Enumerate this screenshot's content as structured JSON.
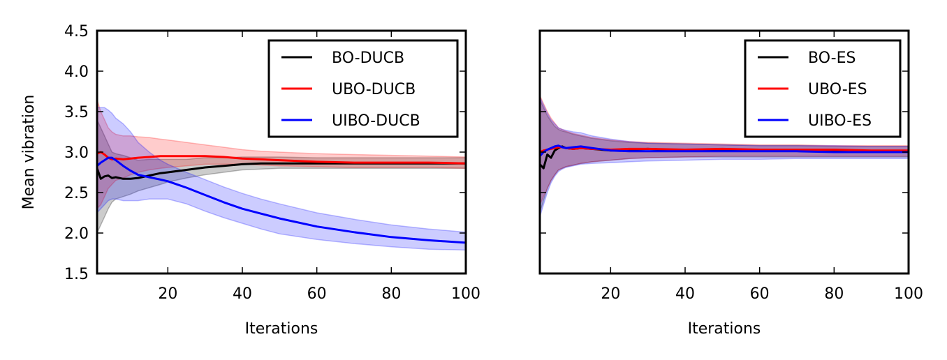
{
  "chart_data": [
    {
      "type": "line",
      "xlabel": "Iterations",
      "ylabel": "Mean vibration",
      "xlim": [
        1,
        100
      ],
      "ylim": [
        1.5,
        4.5
      ],
      "xticks": [
        20,
        40,
        60,
        80,
        100
      ],
      "yticks": [
        1.5,
        2.0,
        2.5,
        3.0,
        3.5,
        4.0,
        4.5
      ],
      "ytick_labels": [
        "1.5",
        "2.0",
        "2.5",
        "3.0",
        "3.5",
        "4.0",
        "4.5"
      ],
      "show_yticklabels": true,
      "legend_position": "top-right",
      "series": [
        {
          "name": "BO-DUCB",
          "color": "#000000",
          "x": [
            1,
            2,
            3,
            4,
            5,
            6,
            8,
            10,
            12,
            15,
            18,
            20,
            25,
            30,
            35,
            40,
            45,
            50,
            60,
            70,
            80,
            90,
            100
          ],
          "y": [
            2.8,
            2.67,
            2.7,
            2.71,
            2.68,
            2.69,
            2.67,
            2.67,
            2.68,
            2.71,
            2.74,
            2.75,
            2.78,
            2.81,
            2.83,
            2.85,
            2.86,
            2.86,
            2.86,
            2.86,
            2.86,
            2.86,
            2.86
          ],
          "lower": [
            2.0,
            2.1,
            2.2,
            2.3,
            2.38,
            2.42,
            2.45,
            2.48,
            2.52,
            2.56,
            2.6,
            2.63,
            2.68,
            2.72,
            2.75,
            2.78,
            2.79,
            2.8,
            2.8,
            2.8,
            2.8,
            2.8,
            2.8
          ],
          "upper": [
            3.4,
            3.3,
            3.2,
            3.1,
            3.0,
            2.98,
            2.96,
            2.93,
            2.9,
            2.91,
            2.91,
            2.91,
            2.91,
            2.93,
            2.93,
            2.94,
            2.94,
            2.94,
            2.93,
            2.93,
            2.93,
            2.93,
            2.93
          ]
        },
        {
          "name": "UBO-DUCB",
          "color": "#ff0000",
          "x": [
            1,
            2,
            3,
            4,
            5,
            6,
            8,
            10,
            12,
            15,
            18,
            20,
            25,
            30,
            35,
            40,
            45,
            50,
            60,
            70,
            80,
            90,
            100
          ],
          "y": [
            2.98,
            3.0,
            2.97,
            2.93,
            2.91,
            2.92,
            2.91,
            2.92,
            2.93,
            2.94,
            2.95,
            2.95,
            2.95,
            2.95,
            2.94,
            2.92,
            2.91,
            2.9,
            2.88,
            2.87,
            2.87,
            2.87,
            2.86
          ],
          "lower": [
            2.3,
            2.35,
            2.45,
            2.55,
            2.6,
            2.65,
            2.68,
            2.72,
            2.75,
            2.78,
            2.8,
            2.81,
            2.83,
            2.85,
            2.85,
            2.85,
            2.84,
            2.83,
            2.82,
            2.81,
            2.81,
            2.81,
            2.8
          ],
          "upper": [
            3.65,
            3.5,
            3.4,
            3.3,
            3.25,
            3.22,
            3.2,
            3.2,
            3.19,
            3.18,
            3.16,
            3.15,
            3.12,
            3.09,
            3.06,
            3.03,
            3.01,
            3.0,
            2.98,
            2.97,
            2.96,
            2.95,
            2.94
          ]
        },
        {
          "name": "UIBO-DUCB",
          "color": "#0000ff",
          "x": [
            1,
            2,
            3,
            4,
            5,
            6,
            8,
            10,
            12,
            15,
            18,
            20,
            25,
            30,
            35,
            40,
            45,
            50,
            60,
            70,
            80,
            90,
            100
          ],
          "y": [
            2.83,
            2.87,
            2.9,
            2.93,
            2.93,
            2.9,
            2.83,
            2.77,
            2.72,
            2.69,
            2.66,
            2.64,
            2.56,
            2.47,
            2.38,
            2.3,
            2.24,
            2.18,
            2.08,
            2.01,
            1.95,
            1.91,
            1.88
          ],
          "lower": [
            2.25,
            2.3,
            2.35,
            2.4,
            2.42,
            2.42,
            2.4,
            2.4,
            2.4,
            2.42,
            2.42,
            2.42,
            2.36,
            2.27,
            2.19,
            2.12,
            2.05,
            1.99,
            1.92,
            1.87,
            1.83,
            1.8,
            1.79
          ],
          "upper": [
            3.55,
            3.55,
            3.55,
            3.52,
            3.48,
            3.42,
            3.35,
            3.25,
            3.12,
            3.0,
            2.9,
            2.85,
            2.75,
            2.66,
            2.57,
            2.49,
            2.42,
            2.36,
            2.25,
            2.17,
            2.1,
            2.05,
            2.01
          ]
        }
      ]
    },
    {
      "type": "line",
      "xlabel": "Iterations",
      "ylabel": "",
      "xlim": [
        1,
        100
      ],
      "ylim": [
        1.5,
        4.5
      ],
      "xticks": [
        20,
        40,
        60,
        80,
        100
      ],
      "yticks": [
        1.5,
        2.0,
        2.5,
        3.0,
        3.5,
        4.0,
        4.5
      ],
      "ytick_labels": [],
      "show_yticklabels": false,
      "legend_position": "top-right",
      "series": [
        {
          "name": "BO-ES",
          "color": "#000000",
          "x": [
            1,
            2,
            3,
            4,
            5,
            6,
            7,
            8,
            10,
            12,
            15,
            20,
            25,
            30,
            40,
            50,
            60,
            70,
            80,
            90,
            100
          ],
          "y": [
            2.85,
            2.8,
            2.97,
            2.93,
            3.02,
            3.05,
            3.07,
            3.05,
            3.04,
            3.05,
            3.04,
            3.02,
            3.03,
            3.04,
            3.02,
            3.03,
            3.02,
            3.02,
            3.01,
            3.01,
            3.0
          ],
          "lower": [
            2.25,
            2.4,
            2.55,
            2.65,
            2.72,
            2.78,
            2.8,
            2.82,
            2.84,
            2.86,
            2.88,
            2.9,
            2.92,
            2.93,
            2.94,
            2.94,
            2.94,
            2.94,
            2.94,
            2.94,
            2.94
          ],
          "upper": [
            3.65,
            3.55,
            3.45,
            3.38,
            3.32,
            3.28,
            3.26,
            3.25,
            3.22,
            3.2,
            3.17,
            3.14,
            3.12,
            3.11,
            3.1,
            3.09,
            3.08,
            3.08,
            3.07,
            3.07,
            3.07
          ]
        },
        {
          "name": "UBO-ES",
          "color": "#ff0000",
          "x": [
            1,
            2,
            3,
            4,
            5,
            6,
            7,
            8,
            10,
            12,
            15,
            20,
            25,
            30,
            40,
            50,
            60,
            70,
            80,
            90,
            100
          ],
          "y": [
            3.0,
            3.02,
            3.03,
            3.04,
            3.05,
            3.06,
            3.06,
            3.05,
            3.04,
            3.05,
            3.04,
            3.03,
            3.04,
            3.04,
            3.03,
            3.04,
            3.03,
            3.03,
            3.03,
            3.02,
            3.02
          ],
          "lower": [
            2.35,
            2.45,
            2.55,
            2.65,
            2.72,
            2.78,
            2.8,
            2.82,
            2.84,
            2.86,
            2.88,
            2.9,
            2.92,
            2.93,
            2.94,
            2.95,
            2.95,
            2.95,
            2.95,
            2.95,
            2.95
          ],
          "upper": [
            3.7,
            3.6,
            3.5,
            3.42,
            3.36,
            3.3,
            3.28,
            3.26,
            3.23,
            3.21,
            3.18,
            3.15,
            3.13,
            3.12,
            3.11,
            3.1,
            3.09,
            3.09,
            3.08,
            3.08,
            3.08
          ]
        },
        {
          "name": "UIBO-ES",
          "color": "#0000ff",
          "x": [
            1,
            2,
            3,
            4,
            5,
            6,
            7,
            8,
            10,
            12,
            15,
            20,
            25,
            30,
            40,
            50,
            60,
            70,
            80,
            90,
            100
          ],
          "y": [
            2.95,
            3.0,
            3.03,
            3.05,
            3.07,
            3.08,
            3.06,
            3.05,
            3.06,
            3.07,
            3.05,
            3.02,
            3.01,
            3.01,
            3.01,
            3.01,
            3.01,
            3.01,
            3.0,
            3.0,
            3.0
          ],
          "lower": [
            2.2,
            2.35,
            2.5,
            2.62,
            2.7,
            2.76,
            2.79,
            2.81,
            2.83,
            2.85,
            2.86,
            2.87,
            2.88,
            2.89,
            2.9,
            2.91,
            2.91,
            2.92,
            2.92,
            2.92,
            2.92
          ],
          "upper": [
            3.68,
            3.58,
            3.48,
            3.4,
            3.35,
            3.3,
            3.28,
            3.27,
            3.25,
            3.24,
            3.2,
            3.16,
            3.13,
            3.11,
            3.1,
            3.09,
            3.08,
            3.08,
            3.08,
            3.07,
            3.07
          ]
        }
      ]
    }
  ]
}
